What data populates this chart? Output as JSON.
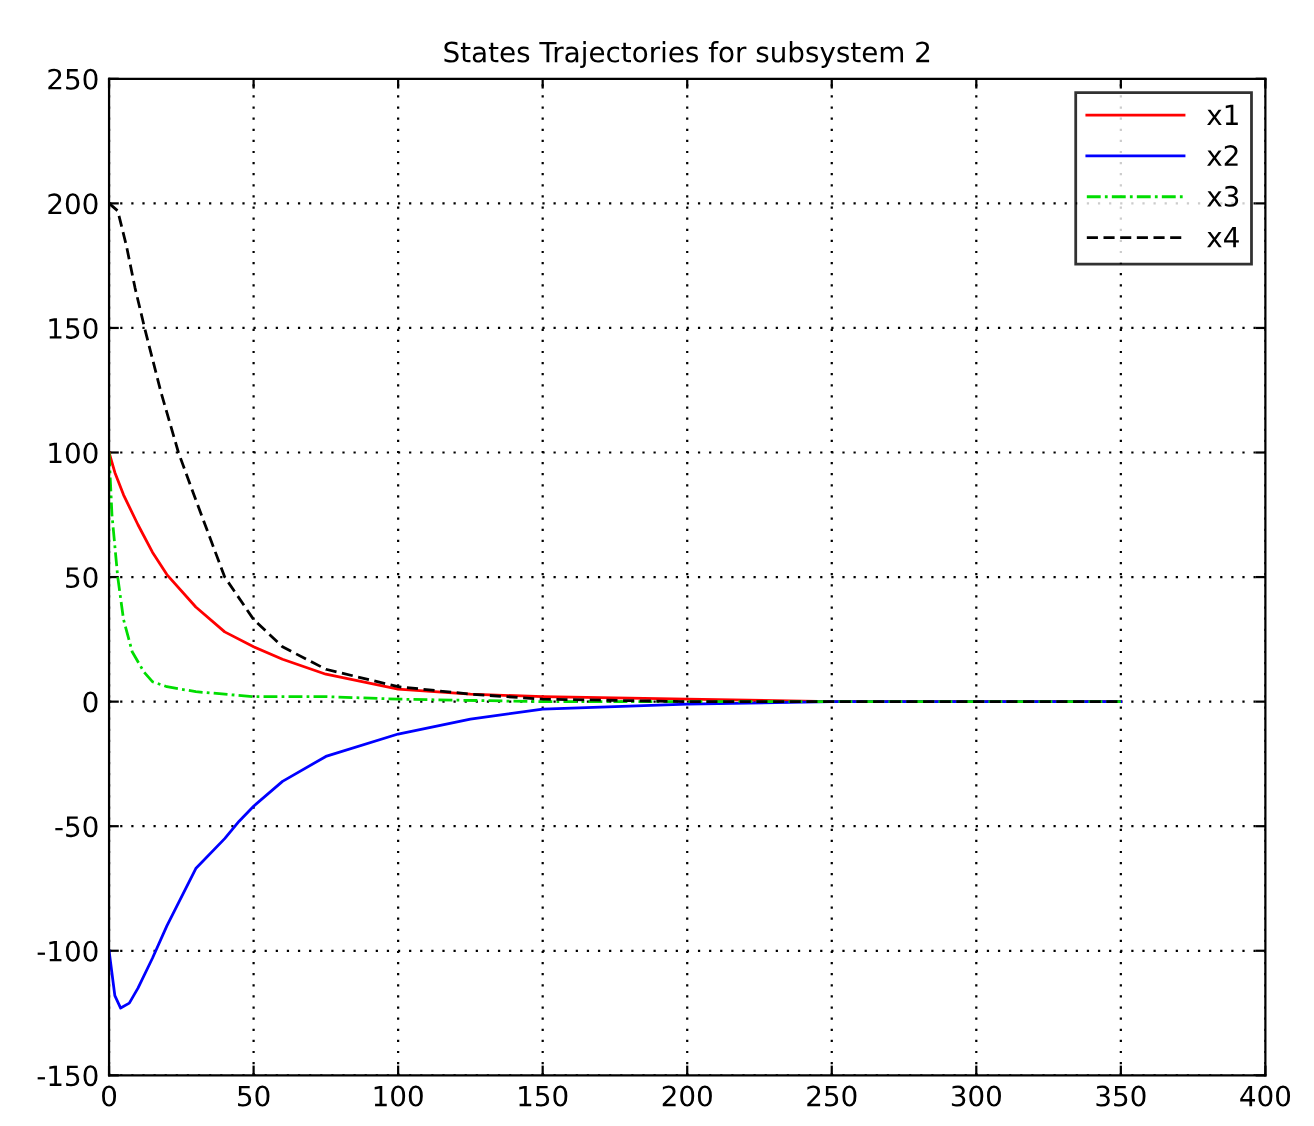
{
  "chart_data": {
    "type": "line",
    "title": "States Trajectories for subsystem 2",
    "xlim": [
      0,
      400
    ],
    "ylim": [
      -150,
      250
    ],
    "xticks": [
      0,
      50,
      100,
      150,
      200,
      250,
      300,
      350,
      400
    ],
    "yticks": [
      -150,
      -100,
      -50,
      0,
      50,
      100,
      150,
      200,
      250
    ],
    "grid": true,
    "legend": "top right",
    "series": [
      {
        "name": "x1",
        "color": "#ff0000",
        "line_style": "solid",
        "x": [
          0,
          2,
          5,
          10,
          15,
          20,
          30,
          40,
          50,
          60,
          75,
          100,
          125,
          150,
          200,
          250,
          300,
          350
        ],
        "values": [
          100,
          92,
          83,
          71,
          60,
          51,
          38,
          28,
          22,
          17,
          11,
          5,
          3,
          2,
          1,
          0,
          0,
          0
        ]
      },
      {
        "name": "x2",
        "color": "#0000ff",
        "line_style": "solid",
        "x": [
          0,
          2,
          4,
          7,
          10,
          15,
          20,
          30,
          40,
          45,
          50,
          60,
          75,
          100,
          125,
          150,
          200,
          250,
          300,
          350
        ],
        "values": [
          -100,
          -118,
          -123,
          -121,
          -115,
          -103,
          -90,
          -67,
          -55,
          -48,
          -42,
          -32,
          -22,
          -13,
          -7,
          -3,
          -1,
          0,
          0,
          0
        ]
      },
      {
        "name": "x3",
        "color": "#00dd00",
        "line_style": "dashdot",
        "x": [
          0,
          1,
          3,
          5,
          8,
          12,
          15,
          20,
          30,
          50,
          75,
          100,
          150,
          200,
          250,
          300,
          350
        ],
        "values": [
          100,
          75,
          50,
          33,
          20,
          12,
          8,
          6,
          4,
          2,
          2,
          1,
          0,
          0,
          0,
          0,
          0
        ]
      },
      {
        "name": "x4",
        "color": "#000000",
        "line_style": "dashed",
        "x": [
          0,
          3,
          6,
          9,
          12.5,
          18,
          24,
          30,
          40,
          50,
          60,
          75,
          100,
          125,
          150,
          200,
          250,
          300,
          350
        ],
        "values": [
          200,
          197,
          183,
          166,
          149,
          124,
          100,
          81,
          50,
          33,
          22,
          13,
          6,
          3,
          1,
          0,
          0,
          0,
          0
        ]
      }
    ]
  }
}
